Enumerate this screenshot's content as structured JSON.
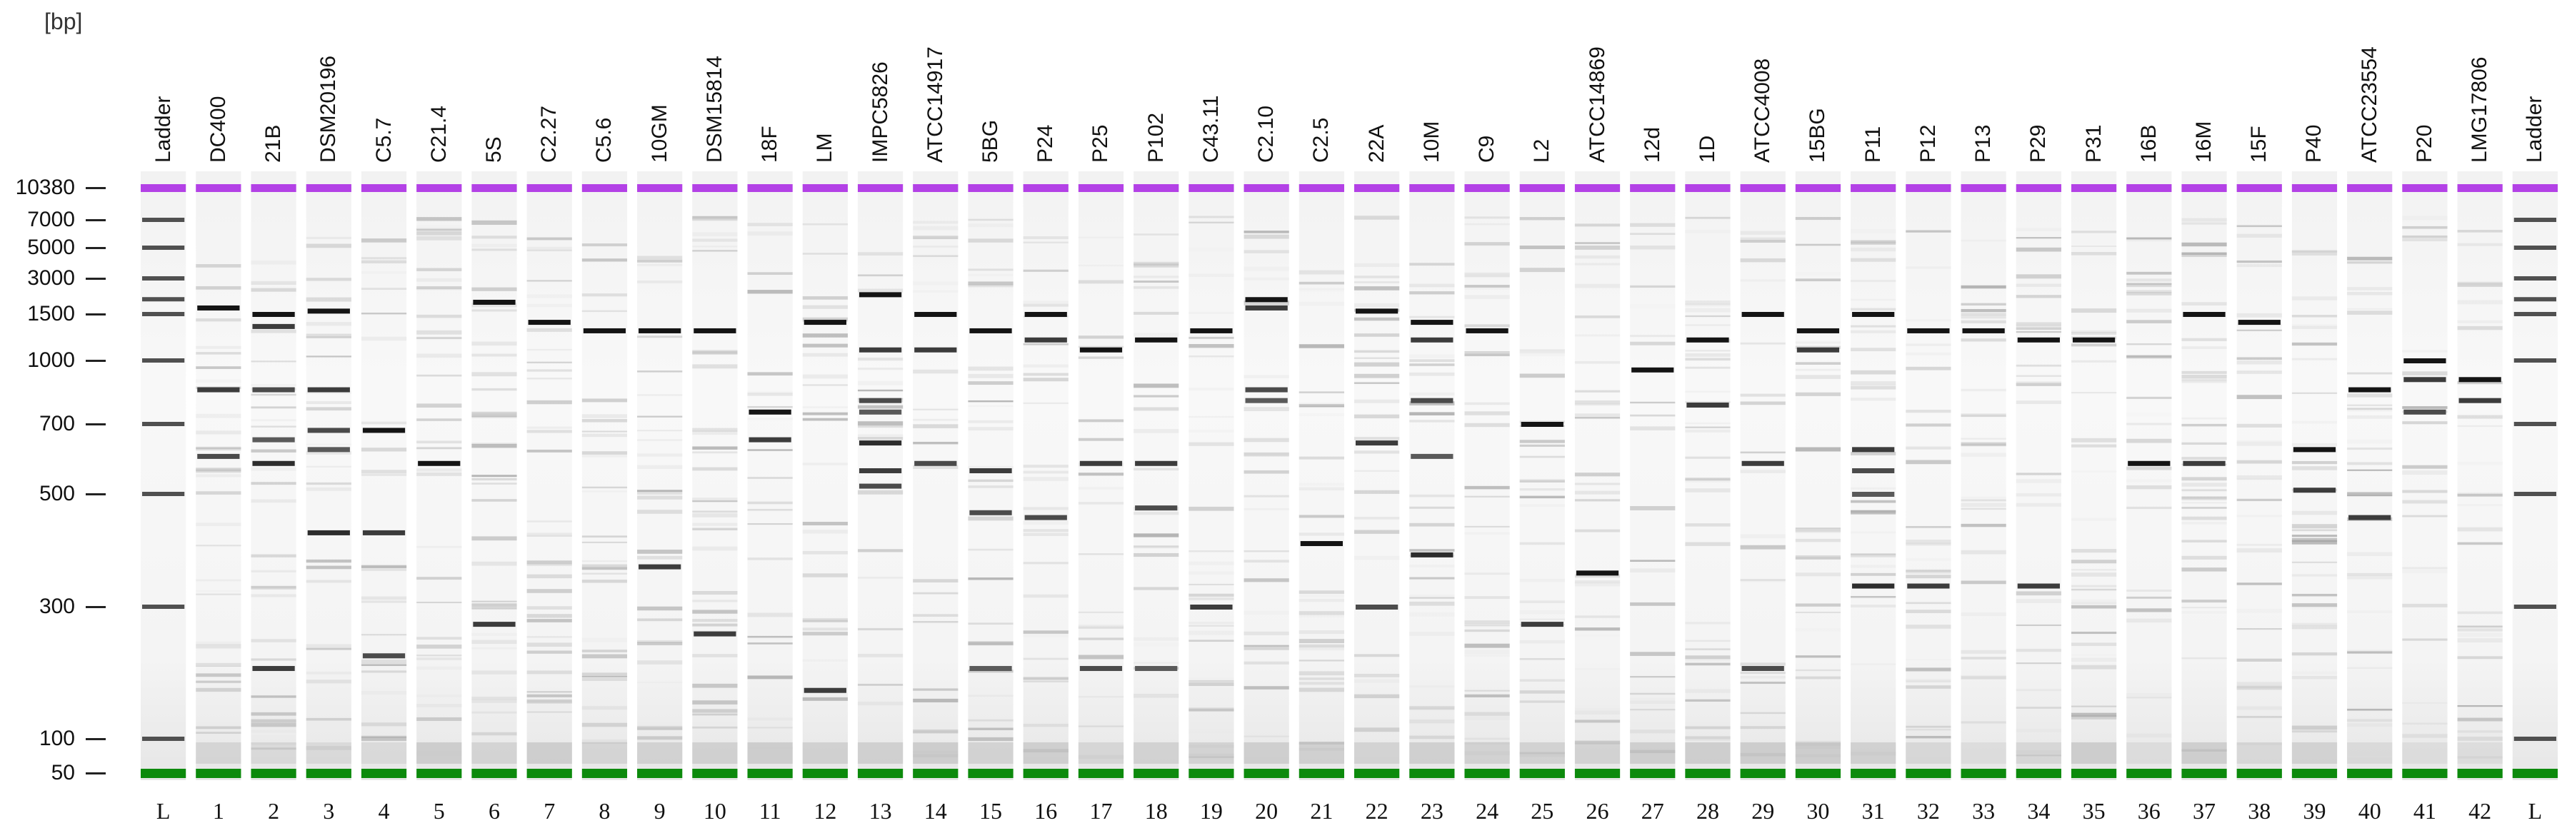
{
  "unit_label": "[bp]",
  "ladder_ticks": [
    10380,
    7000,
    5000,
    3000,
    1500,
    1000,
    700,
    500,
    300,
    100,
    50
  ],
  "lanes": [
    {
      "name": "Ladder",
      "num": "L"
    },
    {
      "name": "DC400",
      "num": "1"
    },
    {
      "name": "21B",
      "num": "2"
    },
    {
      "name": "DSM20196",
      "num": "3"
    },
    {
      "name": "C5.7",
      "num": "4"
    },
    {
      "name": "C21.4",
      "num": "5"
    },
    {
      "name": "5S",
      "num": "6"
    },
    {
      "name": "C2.27",
      "num": "7"
    },
    {
      "name": "C5.6",
      "num": "8"
    },
    {
      "name": "10GM",
      "num": "9"
    },
    {
      "name": "DSM15814",
      "num": "10"
    },
    {
      "name": "18F",
      "num": "11"
    },
    {
      "name": "LM",
      "num": "12"
    },
    {
      "name": "IMPC5826",
      "num": "13"
    },
    {
      "name": "ATCC14917",
      "num": "14"
    },
    {
      "name": "5BG",
      "num": "15"
    },
    {
      "name": "P24",
      "num": "16"
    },
    {
      "name": "P25",
      "num": "17"
    },
    {
      "name": "P102",
      "num": "18"
    },
    {
      "name": "C43.11",
      "num": "19"
    },
    {
      "name": "C2.10",
      "num": "20"
    },
    {
      "name": "C2.5",
      "num": "21"
    },
    {
      "name": "22A",
      "num": "22"
    },
    {
      "name": "10M",
      "num": "23"
    },
    {
      "name": "C9",
      "num": "24"
    },
    {
      "name": "L2",
      "num": "25"
    },
    {
      "name": "ATCC14869",
      "num": "26"
    },
    {
      "name": "12d",
      "num": "27"
    },
    {
      "name": "1D",
      "num": "28"
    },
    {
      "name": "ATCC4008",
      "num": "29"
    },
    {
      "name": "15BG",
      "num": "30"
    },
    {
      "name": "P11",
      "num": "31"
    },
    {
      "name": "P12",
      "num": "32"
    },
    {
      "name": "P13",
      "num": "33"
    },
    {
      "name": "P29",
      "num": "34"
    },
    {
      "name": "P31",
      "num": "35"
    },
    {
      "name": "16B",
      "num": "36"
    },
    {
      "name": "16M",
      "num": "37"
    },
    {
      "name": "15F",
      "num": "38"
    },
    {
      "name": "P40",
      "num": "39"
    },
    {
      "name": "ATCC23554",
      "num": "40"
    },
    {
      "name": "P20",
      "num": "41"
    },
    {
      "name": "LMG17806",
      "num": "42"
    },
    {
      "name": "Ladder",
      "num": "L"
    }
  ],
  "marker_colors": {
    "upper": "#b341e6",
    "lower": "#0c8a0c"
  },
  "strong_bands": [
    {
      "lane": 0,
      "bp": [
        7000,
        5000,
        3000,
        2000,
        1500,
        1000,
        700,
        500,
        300,
        100
      ]
    },
    {
      "lane": 1,
      "bp": [
        1700,
        850,
        600
      ]
    },
    {
      "lane": 2,
      "bp": [
        1500,
        1350,
        850,
        650,
        580,
        180
      ]
    },
    {
      "lane": 3,
      "bp": [
        1600,
        850,
        680,
        620,
        420
      ]
    },
    {
      "lane": 4,
      "bp": [
        680,
        420,
        200
      ]
    },
    {
      "lane": 5,
      "bp": [
        580
      ]
    },
    {
      "lane": 6,
      "bp": [
        1900,
        260
      ]
    },
    {
      "lane": 7,
      "bp": [
        1400
      ]
    },
    {
      "lane": 8,
      "bp": [
        1300
      ]
    },
    {
      "lane": 9,
      "bp": [
        1300,
        360
      ]
    },
    {
      "lane": 10,
      "bp": [
        1300,
        240
      ]
    },
    {
      "lane": 11,
      "bp": [
        750,
        650
      ]
    },
    {
      "lane": 12,
      "bp": [
        1400,
        150
      ]
    },
    {
      "lane": 13,
      "bp": [
        2200,
        1100,
        800,
        750,
        640,
        560,
        520
      ]
    },
    {
      "lane": 14,
      "bp": [
        1500,
        1100,
        580
      ]
    },
    {
      "lane": 15,
      "bp": [
        1300,
        560,
        460,
        180
      ]
    },
    {
      "lane": 16,
      "bp": [
        1500,
        1200,
        450
      ]
    },
    {
      "lane": 17,
      "bp": [
        1100,
        580,
        180
      ]
    },
    {
      "lane": 18,
      "bp": [
        1200,
        580,
        470,
        180
      ]
    },
    {
      "lane": 19,
      "bp": [
        1300,
        300
      ]
    },
    {
      "lane": 20,
      "bp": [
        2000,
        1700,
        850,
        800
      ]
    },
    {
      "lane": 21,
      "bp": [
        400
      ]
    },
    {
      "lane": 22,
      "bp": [
        1600,
        640,
        300
      ]
    },
    {
      "lane": 23,
      "bp": [
        1400,
        1200,
        800,
        600,
        380
      ]
    },
    {
      "lane": 24,
      "bp": [
        1300
      ]
    },
    {
      "lane": 25,
      "bp": [
        700,
        260
      ]
    },
    {
      "lane": 26,
      "bp": [
        350
      ]
    },
    {
      "lane": 27,
      "bp": [
        950
      ]
    },
    {
      "lane": 28,
      "bp": [
        1200,
        780
      ]
    },
    {
      "lane": 29,
      "bp": [
        1500,
        580,
        180
      ]
    },
    {
      "lane": 30,
      "bp": [
        1300,
        1100
      ]
    },
    {
      "lane": 31,
      "bp": [
        1500,
        620,
        560,
        500,
        330
      ]
    },
    {
      "lane": 32,
      "bp": [
        1300,
        330
      ]
    },
    {
      "lane": 33,
      "bp": [
        1300
      ]
    },
    {
      "lane": 34,
      "bp": [
        1200,
        330
      ]
    },
    {
      "lane": 35,
      "bp": [
        1200
      ]
    },
    {
      "lane": 36,
      "bp": [
        580
      ]
    },
    {
      "lane": 37,
      "bp": [
        1500,
        580
      ]
    },
    {
      "lane": 38,
      "bp": [
        1400
      ]
    },
    {
      "lane": 39,
      "bp": [
        620,
        510
      ]
    },
    {
      "lane": 40,
      "bp": [
        850,
        450
      ]
    },
    {
      "lane": 41,
      "bp": [
        1000,
        900,
        750
      ]
    },
    {
      "lane": 42,
      "bp": [
        900,
        800
      ]
    },
    {
      "lane": 43,
      "bp": [
        7000,
        5000,
        3000,
        2000,
        1500,
        1000,
        700,
        500,
        300,
        100
      ]
    }
  ]
}
